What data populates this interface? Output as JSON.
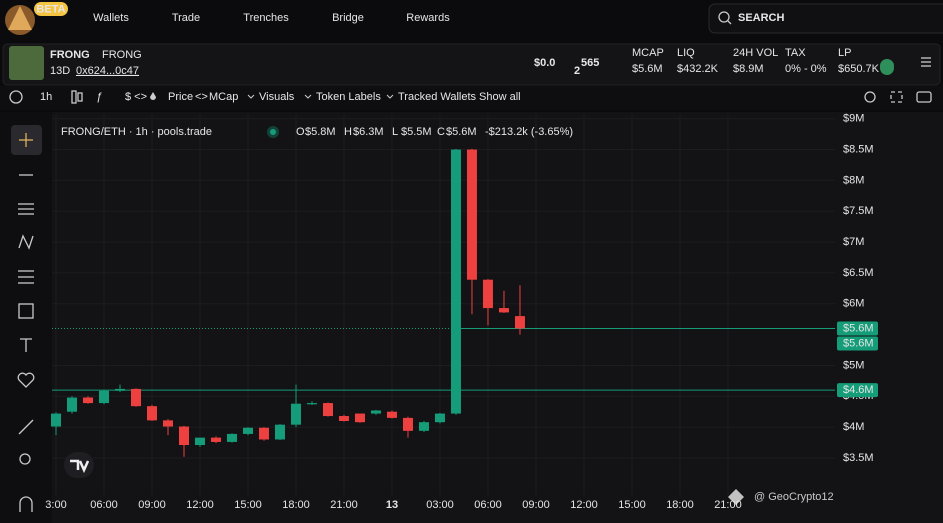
{
  "nav": {
    "badge": "BETA",
    "items": [
      "Wallets",
      "Trade",
      "Trenches",
      "Bridge",
      "Rewards"
    ],
    "active": 1,
    "search": "SEARCH"
  },
  "token": {
    "name": "FRONG",
    "ticker": "FRONG",
    "age": "13D",
    "address": "0x624...0c47",
    "price": {
      "lead": "$0.0",
      "sub": "2",
      "rest": "565"
    },
    "stats": [
      {
        "label": "MCAP",
        "value": "$5.6M"
      },
      {
        "label": "LIQ",
        "value": "$432.2K"
      },
      {
        "label": "24H VOL",
        "value": "$8.9M"
      },
      {
        "label": "TAX",
        "value": "0% - 0%"
      },
      {
        "label": "LP",
        "value": "$650.7K"
      }
    ]
  },
  "toolbar": {
    "interval": "1h",
    "currency": "$ <>",
    "price": "Price",
    "swap": "<>",
    "mcap": "MCap",
    "menus": [
      "Visuals",
      "Token Labels",
      "Tracked Wallets"
    ],
    "show_all": "Show all"
  },
  "watermark": "@ GeoCrypto12",
  "chart_data": {
    "type": "candlestick",
    "title": "FRONG/ETH · 1h · pools.trade",
    "summary": [
      {
        "key": "O",
        "value": "$5.8M"
      },
      {
        "key": "H",
        "value": "$6.3M"
      },
      {
        "key": "L",
        "value": "$5.5M"
      },
      {
        "key": "C",
        "value": "$5.6M"
      }
    ],
    "change": "-$213.2k (-3.65%)",
    "up_color": "#159c78",
    "down_color": "#ef4040",
    "x": [
      0,
      1,
      2,
      3,
      4,
      5,
      6,
      7,
      8,
      9,
      10,
      11,
      12,
      13,
      14,
      15,
      16,
      17,
      18,
      19,
      20,
      21,
      22,
      23,
      24,
      25,
      26,
      27,
      28,
      29
    ],
    "open": [
      4.01,
      4.25,
      4.48,
      4.39,
      4.59,
      4.62,
      4.34,
      4.11,
      4.01,
      3.71,
      3.83,
      3.76,
      3.89,
      3.99,
      3.8,
      4.04,
      4.37,
      4.39,
      4.18,
      4.22,
      4.22,
      4.25,
      4.15,
      3.94,
      4.08,
      4.22,
      8.5,
      6.39,
      5.93,
      5.8
    ],
    "high": [
      4.24,
      4.5,
      4.5,
      4.6,
      4.69,
      4.63,
      4.36,
      4.13,
      4.02,
      3.83,
      3.85,
      3.9,
      4.0,
      4.0,
      4.05,
      4.69,
      4.42,
      4.4,
      4.2,
      4.22,
      4.28,
      4.27,
      4.17,
      4.1,
      4.23,
      8.51,
      8.51,
      6.4,
      6.21,
      6.3
    ],
    "low": [
      3.87,
      4.22,
      4.38,
      4.37,
      4.57,
      4.33,
      4.1,
      3.87,
      3.52,
      3.68,
      3.74,
      3.75,
      3.87,
      3.78,
      3.79,
      4.0,
      4.36,
      4.17,
      4.09,
      4.07,
      4.2,
      4.14,
      3.83,
      3.92,
      4.06,
      4.2,
      5.83,
      5.65,
      5.85,
      5.5
    ],
    "close": [
      4.22,
      4.48,
      4.39,
      4.59,
      4.62,
      4.34,
      4.11,
      4.01,
      3.71,
      3.83,
      3.76,
      3.89,
      3.99,
      3.8,
      4.04,
      4.38,
      4.39,
      4.18,
      4.1,
      4.08,
      4.27,
      4.15,
      3.94,
      4.08,
      4.22,
      8.5,
      6.39,
      5.93,
      5.86,
      5.6
    ],
    "xlim": [
      -0.25,
      48.69
    ],
    "xticks": [
      {
        "value": 0,
        "label": "3:00"
      },
      {
        "value": 3,
        "label": "06:00"
      },
      {
        "value": 6,
        "label": "09:00"
      },
      {
        "value": 9,
        "label": "12:00"
      },
      {
        "value": 12,
        "label": "15:00"
      },
      {
        "value": 15,
        "label": "18:00"
      },
      {
        "value": 18,
        "label": "21:00"
      },
      {
        "value": 21,
        "label": "13"
      },
      {
        "value": 24,
        "label": "03:00"
      },
      {
        "value": 27,
        "label": "06:00"
      },
      {
        "value": 30,
        "label": "09:00"
      },
      {
        "value": 33,
        "label": "12:00"
      },
      {
        "value": 36,
        "label": "15:00"
      },
      {
        "value": 39,
        "label": "18:00"
      },
      {
        "value": 42,
        "label": "21:00"
      }
    ],
    "ylim": [
      2.9,
      9.06
    ],
    "yticks": [
      {
        "value": 3.5,
        "label": "$3.5M"
      },
      {
        "value": 4,
        "label": "$4M"
      },
      {
        "value": 4.5,
        "label": "$4.5M"
      },
      {
        "value": 5,
        "label": "$5M"
      },
      {
        "value": 6,
        "label": "$6M"
      },
      {
        "value": 6.5,
        "label": "$6.5M"
      },
      {
        "value": 7,
        "label": "$7M"
      },
      {
        "value": 7.5,
        "label": "$7.5M"
      },
      {
        "value": 8,
        "label": "$8M"
      },
      {
        "value": 8.5,
        "label": "$8.5M"
      },
      {
        "value": 9,
        "label": "$9M"
      }
    ],
    "grid": true,
    "price_lines": [
      {
        "value": 5.6,
        "label": "$5.6M"
      },
      {
        "value": 5.6,
        "label": "$5.6M"
      },
      {
        "value": 4.6,
        "label": "$4.6M"
      }
    ]
  }
}
